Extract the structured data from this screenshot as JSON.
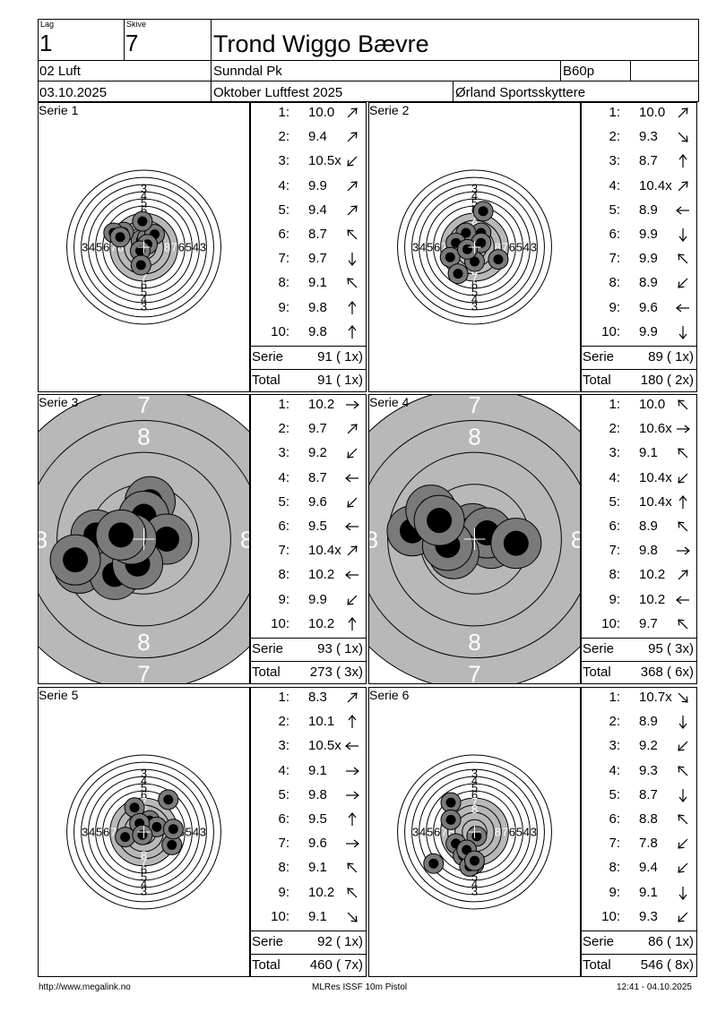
{
  "header": {
    "lag_label": "Lag",
    "lag_value": "1",
    "skive_label": "Skive",
    "skive_value": "7",
    "shooter_name": "Trond Wiggo Bævre",
    "class": "02 Luft",
    "club": "Sunndal Pk",
    "category": "B60p",
    "date": "03.10.2025",
    "event": "Oktober Luftfest 2025",
    "organizer": "Ørland Sportsskyttere"
  },
  "series": [
    {
      "label": "Serie 1",
      "zoom": "normal",
      "shots": [
        {
          "num": "1:",
          "value": "10.0",
          "dir": "NE"
        },
        {
          "num": "2:",
          "value": "9.4",
          "dir": "NE"
        },
        {
          "num": "3:",
          "value": "10.5x",
          "dir": "SW"
        },
        {
          "num": "4:",
          "value": "9.9",
          "dir": "NE"
        },
        {
          "num": "5:",
          "value": "9.4",
          "dir": "NE"
        },
        {
          "num": "6:",
          "value": "8.7",
          "dir": "NW"
        },
        {
          "num": "7:",
          "value": "9.7",
          "dir": "S"
        },
        {
          "num": "8:",
          "value": "9.1",
          "dir": "NW"
        },
        {
          "num": "9:",
          "value": "9.8",
          "dir": "N"
        },
        {
          "num": "10:",
          "value": "9.8",
          "dir": "N"
        }
      ],
      "holes": [
        [
          -0.4,
          1.0
        ],
        [
          0.5,
          1.3
        ],
        [
          1.5,
          1.8
        ],
        [
          -0.2,
          3.6
        ],
        [
          -2.8,
          2.1
        ],
        [
          -4.2,
          2.0
        ],
        [
          -3.3,
          1.4
        ],
        [
          0.5,
          0.4
        ],
        [
          -0.5,
          -0.5
        ],
        [
          -0.4,
          -2.5
        ]
      ],
      "serie_label": "Serie",
      "serie_value": "91 ( 1x)",
      "total_label": "Total",
      "total_value": "91 ( 1x)"
    },
    {
      "label": "Serie 2",
      "zoom": "normal",
      "shots": [
        {
          "num": "1:",
          "value": "10.0",
          "dir": "NE"
        },
        {
          "num": "2:",
          "value": "9.3",
          "dir": "SE"
        },
        {
          "num": "3:",
          "value": "8.7",
          "dir": "N"
        },
        {
          "num": "4:",
          "value": "10.4x",
          "dir": "NE"
        },
        {
          "num": "5:",
          "value": "8.9",
          "dir": "W"
        },
        {
          "num": "6:",
          "value": "9.9",
          "dir": "S"
        },
        {
          "num": "7:",
          "value": "9.9",
          "dir": "NW"
        },
        {
          "num": "8:",
          "value": "8.9",
          "dir": "SW"
        },
        {
          "num": "9:",
          "value": "9.6",
          "dir": "W"
        },
        {
          "num": "10:",
          "value": "9.9",
          "dir": "S"
        }
      ],
      "holes": [
        [
          1.2,
          5.0
        ],
        [
          0.9,
          2.0
        ],
        [
          -1.2,
          2.0
        ],
        [
          -2.6,
          0.6
        ],
        [
          -3.4,
          -1.4
        ],
        [
          0.9,
          0.6
        ],
        [
          0.0,
          -2.0
        ],
        [
          -2.3,
          -3.7
        ],
        [
          3.3,
          -1.7
        ],
        [
          -1.0,
          -0.3
        ]
      ],
      "serie_label": "Serie",
      "serie_value": "89 ( 1x)",
      "total_label": "Total",
      "total_value": "180 ( 2x)"
    },
    {
      "label": "Serie 3",
      "zoom": "zoom",
      "shots": [
        {
          "num": "1:",
          "value": "10.2",
          "dir": "E"
        },
        {
          "num": "2:",
          "value": "9.7",
          "dir": "NE"
        },
        {
          "num": "3:",
          "value": "9.2",
          "dir": "SW"
        },
        {
          "num": "4:",
          "value": "8.7",
          "dir": "W"
        },
        {
          "num": "5:",
          "value": "9.6",
          "dir": "SW"
        },
        {
          "num": "6:",
          "value": "9.5",
          "dir": "W"
        },
        {
          "num": "7:",
          "value": "10.4x",
          "dir": "NE"
        },
        {
          "num": "8:",
          "value": "10.2",
          "dir": "W"
        },
        {
          "num": "9:",
          "value": "9.9",
          "dir": "SW"
        },
        {
          "num": "10:",
          "value": "10.2",
          "dir": "N"
        }
      ],
      "holes": [
        [
          0.3,
          1.8
        ],
        [
          0.0,
          1.1
        ],
        [
          -2.3,
          0.2
        ],
        [
          -3.1,
          -1.4
        ],
        [
          -1.4,
          -1.7
        ],
        [
          -3.3,
          -1.0
        ],
        [
          1.1,
          0.0
        ],
        [
          -0.3,
          -1.2
        ],
        [
          -0.6,
          0.0
        ],
        [
          -1.1,
          0.2
        ]
      ],
      "serie_label": "Serie",
      "serie_value": "93 ( 1x)",
      "total_label": "Total",
      "total_value": "273 ( 3x)"
    },
    {
      "label": "Serie 4",
      "zoom": "zoom",
      "shots": [
        {
          "num": "1:",
          "value": "10.0",
          "dir": "NW"
        },
        {
          "num": "2:",
          "value": "10.6x",
          "dir": "E"
        },
        {
          "num": "3:",
          "value": "9.1",
          "dir": "NW"
        },
        {
          "num": "4:",
          "value": "10.4x",
          "dir": "SW"
        },
        {
          "num": "5:",
          "value": "10.4x",
          "dir": "N"
        },
        {
          "num": "6:",
          "value": "8.9",
          "dir": "NW"
        },
        {
          "num": "7:",
          "value": "9.8",
          "dir": "E"
        },
        {
          "num": "8:",
          "value": "10.2",
          "dir": "NE"
        },
        {
          "num": "9:",
          "value": "10.2",
          "dir": "W"
        },
        {
          "num": "10:",
          "value": "9.7",
          "dir": "NW"
        }
      ],
      "holes": [
        [
          0.2,
          0.0
        ],
        [
          -0.1,
          0.5
        ],
        [
          -3.0,
          0.4
        ],
        [
          0.8,
          -0.2
        ],
        [
          0.6,
          0.3
        ],
        [
          -2.1,
          1.4
        ],
        [
          2.0,
          -0.2
        ],
        [
          -1.0,
          -0.7
        ],
        [
          -1.3,
          -0.3
        ],
        [
          -1.7,
          0.9
        ]
      ],
      "serie_label": "Serie",
      "serie_value": "95 ( 3x)",
      "total_label": "Total",
      "total_value": "368 ( 6x)"
    },
    {
      "label": "Serie 5",
      "zoom": "normal",
      "shots": [
        {
          "num": "1:",
          "value": "8.3",
          "dir": "NE"
        },
        {
          "num": "2:",
          "value": "10.1",
          "dir": "N"
        },
        {
          "num": "3:",
          "value": "10.5x",
          "dir": "W"
        },
        {
          "num": "4:",
          "value": "9.1",
          "dir": "E"
        },
        {
          "num": "5:",
          "value": "9.8",
          "dir": "E"
        },
        {
          "num": "6:",
          "value": "9.5",
          "dir": "N"
        },
        {
          "num": "7:",
          "value": "9.6",
          "dir": "E"
        },
        {
          "num": "8:",
          "value": "9.1",
          "dir": "NW"
        },
        {
          "num": "9:",
          "value": "10.2",
          "dir": "NW"
        },
        {
          "num": "10:",
          "value": "9.1",
          "dir": "SE"
        }
      ],
      "holes": [
        [
          3.4,
          4.5
        ],
        [
          0.8,
          1.6
        ],
        [
          -0.4,
          0.0
        ],
        [
          -1.3,
          3.4
        ],
        [
          1.8,
          0.7
        ],
        [
          -0.6,
          1.2
        ],
        [
          3.9,
          -1.8
        ],
        [
          4.1,
          0.4
        ],
        [
          -2.6,
          -0.7
        ],
        [
          -0.2,
          -0.4
        ]
      ],
      "serie_label": "Serie",
      "serie_value": "92 ( 1x)",
      "total_label": "Total",
      "total_value": "460 ( 7x)"
    },
    {
      "label": "Serie 6",
      "zoom": "normal",
      "shots": [
        {
          "num": "1:",
          "value": "10.7x",
          "dir": "SE"
        },
        {
          "num": "2:",
          "value": "8.9",
          "dir": "S"
        },
        {
          "num": "3:",
          "value": "9.2",
          "dir": "SW"
        },
        {
          "num": "4:",
          "value": "9.3",
          "dir": "NW"
        },
        {
          "num": "5:",
          "value": "8.7",
          "dir": "S"
        },
        {
          "num": "6:",
          "value": "8.8",
          "dir": "NW"
        },
        {
          "num": "7:",
          "value": "7.8",
          "dir": "SW"
        },
        {
          "num": "8:",
          "value": "9.4",
          "dir": "SW"
        },
        {
          "num": "9:",
          "value": "9.1",
          "dir": "S"
        },
        {
          "num": "10:",
          "value": "9.3",
          "dir": "SW"
        }
      ],
      "holes": [
        [
          0.3,
          -0.6
        ],
        [
          -3.3,
          4.1
        ],
        [
          -3.3,
          1.7
        ],
        [
          -2.6,
          -1.6
        ],
        [
          -0.1,
          -4.5
        ],
        [
          -1.6,
          -3.3
        ],
        [
          -5.7,
          -4.4
        ],
        [
          -0.7,
          -4.8
        ],
        [
          -1.1,
          -2.5
        ],
        [
          0.0,
          -4.0
        ]
      ],
      "serie_label": "Serie",
      "serie_value": "86 ( 1x)",
      "total_label": "Total",
      "total_value": "546 ( 8x)"
    }
  ],
  "footer": {
    "url": "http://www.megalink.no",
    "software": "MLRes ISSF 10m Pistol",
    "timestamp": "12:41 - 04.10.2025"
  },
  "colors": {
    "black_zone": "#b8b8b8",
    "hole_outer": "#7a7a7a",
    "hole_inner": "#000000"
  }
}
